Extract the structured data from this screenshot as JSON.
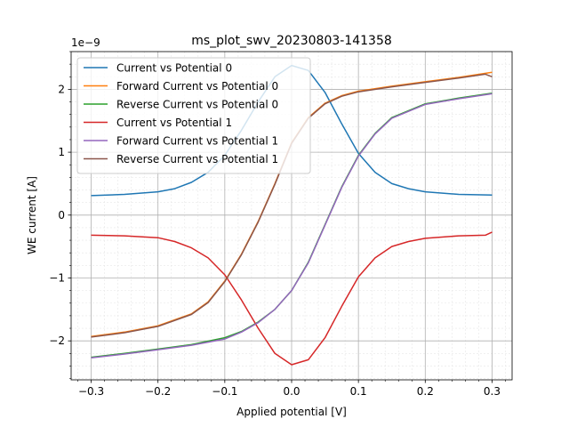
{
  "chart_data": {
    "type": "line",
    "title": "ms_plot_swv_20230803-141358",
    "xlabel": "Applied potential [V]",
    "ylabel": "WE current [A]",
    "y_offset_text": "1e−9",
    "y_multiplier": 1e-09,
    "xlim": [
      -0.33,
      0.33
    ],
    "ylim": [
      -2.62,
      2.6
    ],
    "xticks": [
      -0.3,
      -0.2,
      -0.1,
      0.0,
      0.1,
      0.2,
      0.3
    ],
    "xtick_labels": [
      "−0.3",
      "−0.2",
      "−0.1",
      "0.0",
      "0.1",
      "0.2",
      "0.3"
    ],
    "yticks": [
      -2,
      -1,
      0,
      1,
      2
    ],
    "ytick_labels": [
      "−2",
      "−1",
      "0",
      "1",
      "2"
    ],
    "grid": true,
    "minor_grid": true,
    "legend_position": "upper-left",
    "series": [
      {
        "name": "Current vs Potential 0",
        "color": "#1f77b4",
        "x": [
          -0.3,
          -0.25,
          -0.2,
          -0.175,
          -0.15,
          -0.125,
          -0.1,
          -0.075,
          -0.05,
          -0.025,
          0.0,
          0.025,
          0.05,
          0.075,
          0.1,
          0.125,
          0.15,
          0.175,
          0.2,
          0.25,
          0.3
        ],
        "y": [
          0.31,
          0.33,
          0.37,
          0.42,
          0.52,
          0.68,
          0.95,
          1.35,
          1.8,
          2.2,
          2.38,
          2.3,
          1.95,
          1.45,
          0.98,
          0.68,
          0.5,
          0.42,
          0.37,
          0.33,
          0.32
        ]
      },
      {
        "name": "Forward Current vs Potential 0",
        "color": "#ff7f0e",
        "x": [
          -0.3,
          -0.25,
          -0.2,
          -0.15,
          -0.125,
          -0.1,
          -0.075,
          -0.05,
          -0.025,
          0.0,
          0.025,
          0.05,
          0.075,
          0.1,
          0.15,
          0.2,
          0.25,
          0.3
        ],
        "y": [
          -1.93,
          -1.86,
          -1.76,
          -1.57,
          -1.38,
          -1.05,
          -0.62,
          -0.1,
          0.5,
          1.15,
          1.55,
          1.78,
          1.9,
          1.97,
          2.05,
          2.12,
          2.19,
          2.27
        ]
      },
      {
        "name": "Reverse Current vs Potential 0",
        "color": "#2ca02c",
        "x": [
          -0.3,
          -0.25,
          -0.2,
          -0.15,
          -0.1,
          -0.075,
          -0.05,
          -0.025,
          0.0,
          0.025,
          0.05,
          0.075,
          0.1,
          0.125,
          0.15,
          0.2,
          0.25,
          0.3
        ],
        "y": [
          -2.26,
          -2.2,
          -2.13,
          -2.06,
          -1.95,
          -1.85,
          -1.7,
          -1.5,
          -1.2,
          -0.75,
          -0.15,
          0.45,
          0.95,
          1.3,
          1.55,
          1.77,
          1.86,
          1.94
        ]
      },
      {
        "name": "Current vs Potential 1",
        "color": "#d62728",
        "x": [
          -0.3,
          -0.25,
          -0.2,
          -0.175,
          -0.15,
          -0.125,
          -0.1,
          -0.075,
          -0.05,
          -0.025,
          0.0,
          0.025,
          0.05,
          0.075,
          0.1,
          0.125,
          0.15,
          0.175,
          0.2,
          0.25,
          0.29,
          0.3
        ],
        "y": [
          -0.32,
          -0.33,
          -0.36,
          -0.42,
          -0.52,
          -0.68,
          -0.95,
          -1.35,
          -1.8,
          -2.2,
          -2.38,
          -2.3,
          -1.95,
          -1.45,
          -0.98,
          -0.68,
          -0.5,
          -0.42,
          -0.37,
          -0.33,
          -0.32,
          -0.27
        ]
      },
      {
        "name": "Forward Current vs Potential 1",
        "color": "#9467bd",
        "x": [
          -0.3,
          -0.25,
          -0.2,
          -0.15,
          -0.1,
          -0.075,
          -0.05,
          -0.025,
          0.0,
          0.025,
          0.05,
          0.075,
          0.1,
          0.125,
          0.15,
          0.2,
          0.25,
          0.3
        ],
        "y": [
          -2.27,
          -2.21,
          -2.14,
          -2.07,
          -1.97,
          -1.86,
          -1.71,
          -1.5,
          -1.2,
          -0.76,
          -0.16,
          0.44,
          0.94,
          1.29,
          1.54,
          1.76,
          1.85,
          1.93
        ]
      },
      {
        "name": "Reverse Current vs Potential 1",
        "color": "#8c564b",
        "x": [
          -0.3,
          -0.25,
          -0.2,
          -0.15,
          -0.125,
          -0.1,
          -0.075,
          -0.05,
          -0.025,
          0.0,
          0.025,
          0.05,
          0.075,
          0.1,
          0.15,
          0.2,
          0.25,
          0.29,
          0.3
        ],
        "y": [
          -1.94,
          -1.87,
          -1.77,
          -1.58,
          -1.39,
          -1.06,
          -0.63,
          -0.11,
          0.49,
          1.14,
          1.54,
          1.77,
          1.89,
          1.96,
          2.04,
          2.11,
          2.18,
          2.24,
          2.2
        ]
      }
    ]
  }
}
